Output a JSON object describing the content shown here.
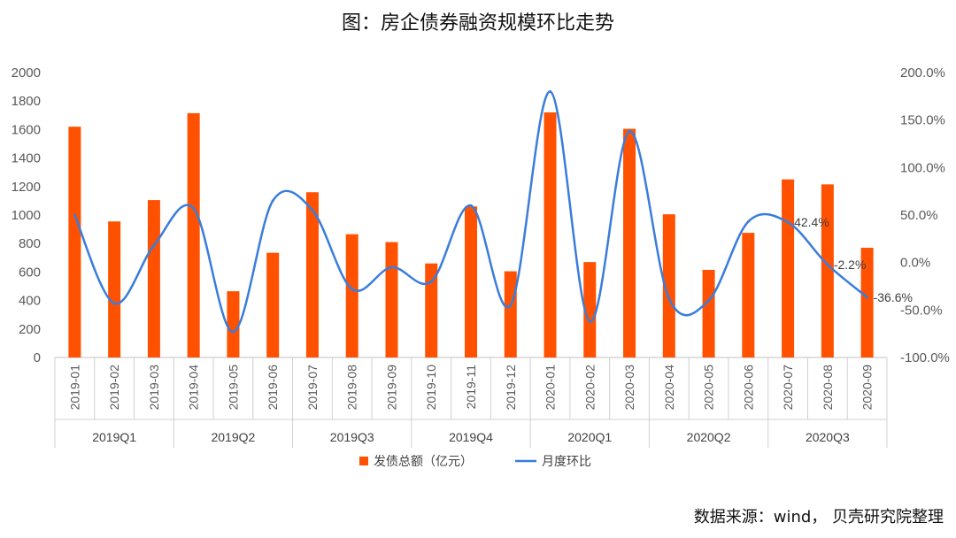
{
  "chart_data": {
    "type": "bar",
    "title": "图：房企债券融资规模环比走势",
    "categories": [
      "2019-01",
      "2019-02",
      "2019-03",
      "2019-04",
      "2019-05",
      "2019-06",
      "2019-07",
      "2019-08",
      "2019-09",
      "2019-10",
      "2019-11",
      "2019-12",
      "2020-01",
      "2020-02",
      "2020-03",
      "2020-04",
      "2020-05",
      "2020-06",
      "2020-07",
      "2020-08",
      "2020-09"
    ],
    "quarters": [
      {
        "label": "2019Q1",
        "span": 3
      },
      {
        "label": "2019Q2",
        "span": 3
      },
      {
        "label": "2019Q3",
        "span": 3
      },
      {
        "label": "2019Q4",
        "span": 3
      },
      {
        "label": "2020Q1",
        "span": 3
      },
      {
        "label": "2020Q2",
        "span": 3
      },
      {
        "label": "2020Q3",
        "span": 3
      }
    ],
    "series": [
      {
        "name": "发债总额（亿元）",
        "type": "bar",
        "axis": "left",
        "values": [
          1620,
          955,
          1105,
          1715,
          465,
          735,
          1160,
          865,
          810,
          660,
          1060,
          605,
          1720,
          670,
          1605,
          1005,
          615,
          875,
          1250,
          1215,
          770
        ]
      },
      {
        "name": "月度环比",
        "type": "line",
        "axis": "right",
        "unit": "%",
        "values": [
          50,
          -43,
          18,
          57,
          -73,
          65,
          55,
          -28,
          -5,
          -20,
          60,
          -45,
          180,
          -62,
          138,
          -38,
          -40,
          43,
          42.4,
          -2.2,
          -36.6
        ]
      }
    ],
    "data_labels": [
      {
        "index": 18,
        "text": "42.4%"
      },
      {
        "index": 19,
        "text": "-2.2%"
      },
      {
        "index": 20,
        "text": "-36.6%"
      }
    ],
    "y_left": {
      "min": 0,
      "max": 2000,
      "step": 200,
      "tick_labels": [
        "0",
        "200",
        "400",
        "600",
        "800",
        "1000",
        "1200",
        "1400",
        "1600",
        "1800",
        "2000"
      ]
    },
    "y_right": {
      "min": -100,
      "max": 200,
      "step": 50,
      "tick_labels": [
        "-100.0%",
        "-50.0%",
        "0.0%",
        "50.0%",
        "100.0%",
        "150.0%",
        "200.0%"
      ]
    },
    "legend_position": "bottom",
    "colors": {
      "bar": "#FF5100",
      "line": "#3A7DDB"
    }
  },
  "source": "数据来源：wind， 贝壳研究院整理"
}
